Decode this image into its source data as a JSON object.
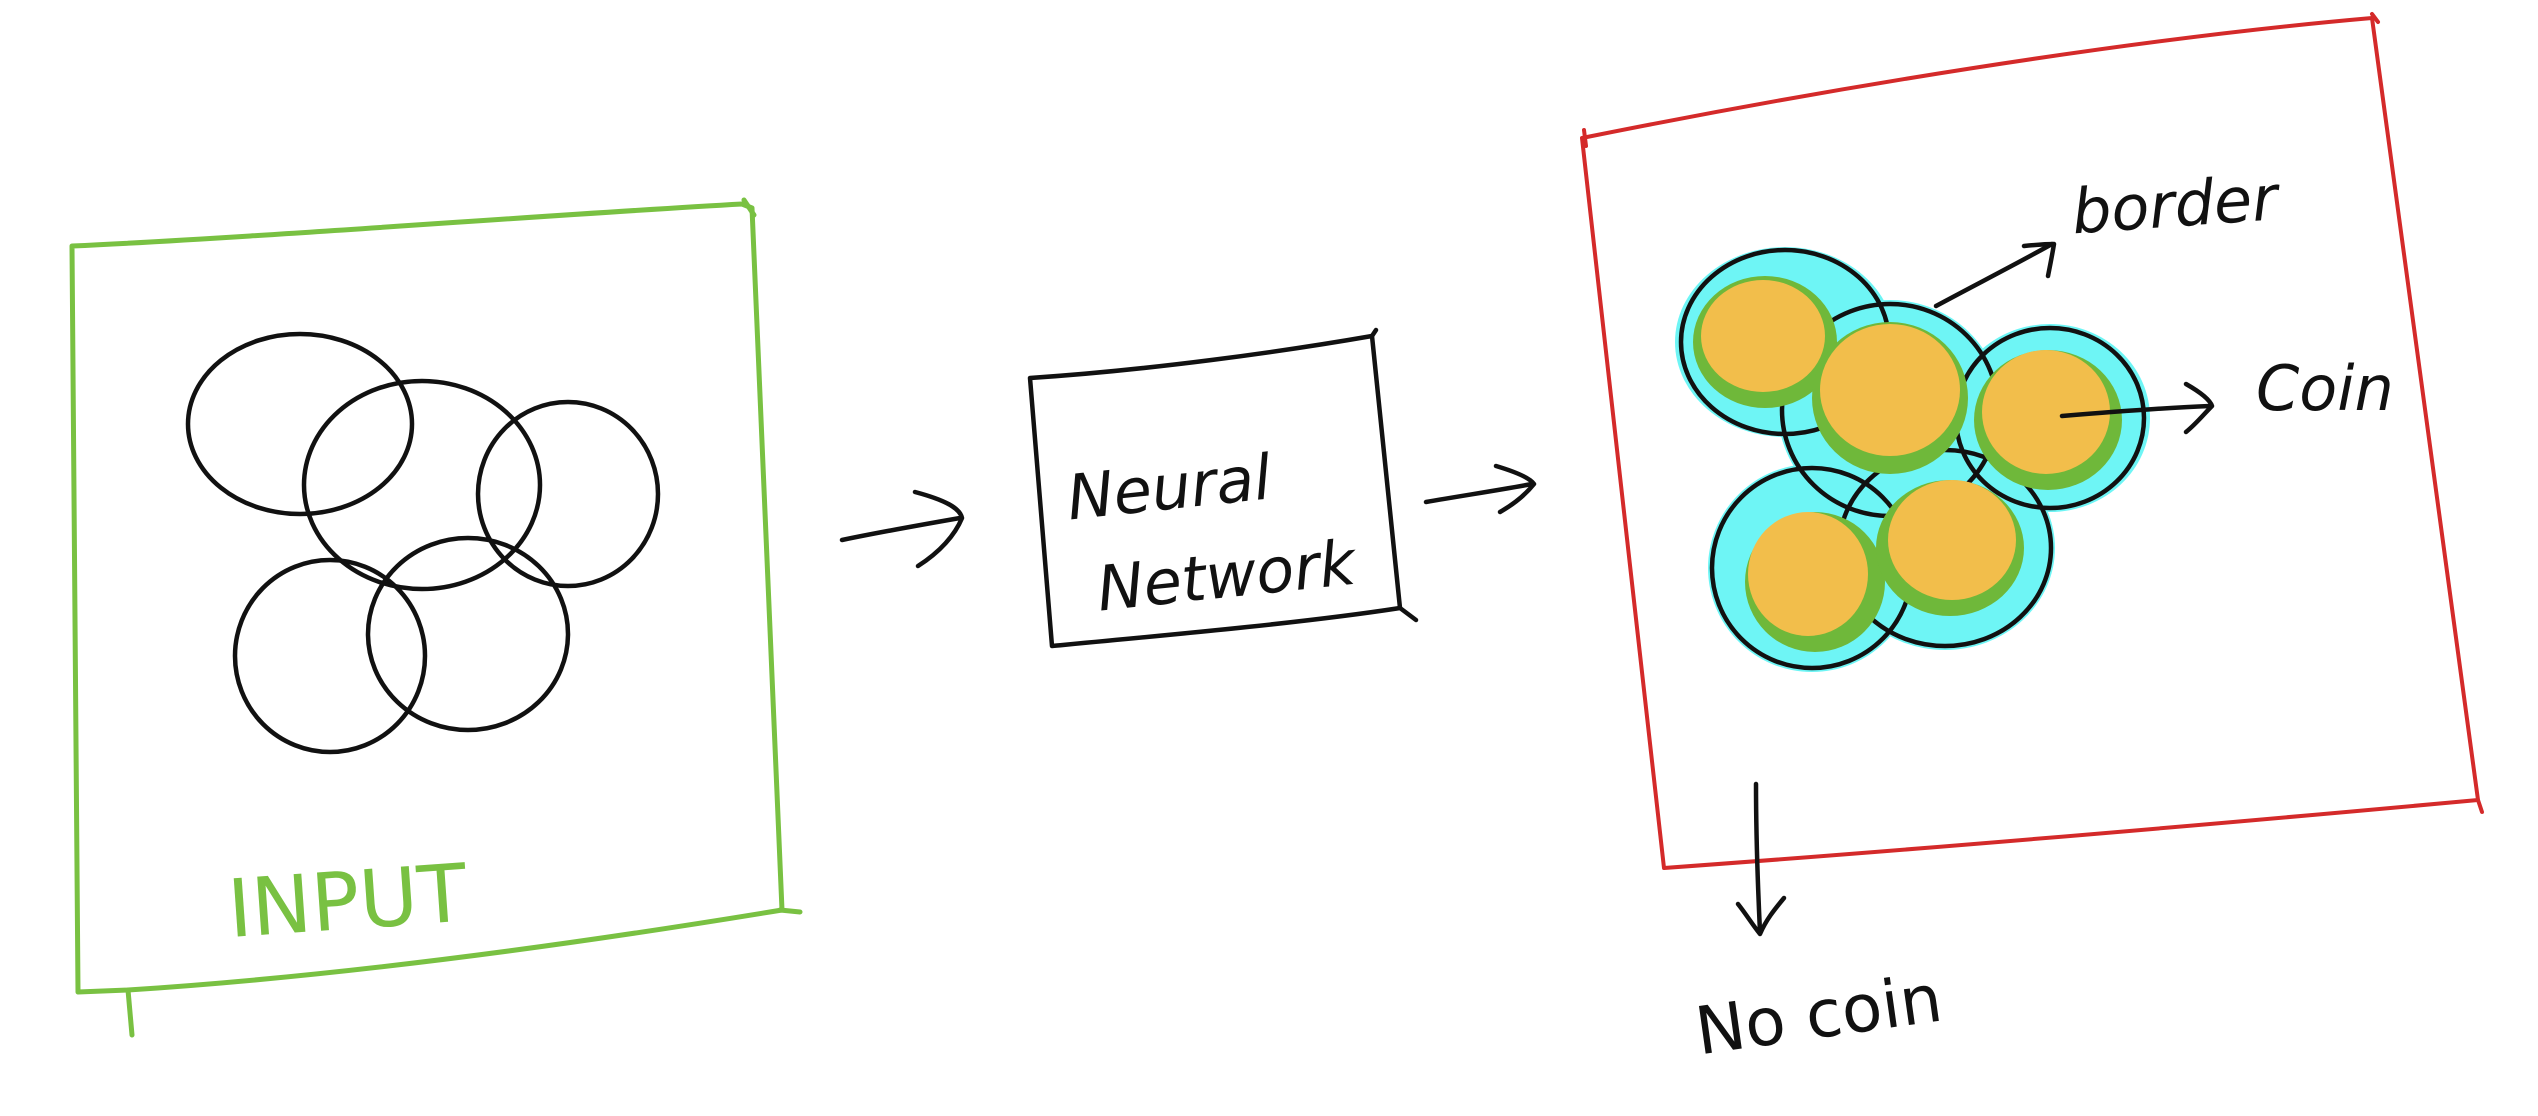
{
  "diagram": {
    "input_label": "INPUT",
    "network_label_line1": "Neural",
    "network_label_line2": "Network",
    "output_labels": {
      "border": "border",
      "coin": "Coin",
      "no_coin": "No coin"
    },
    "colors": {
      "input_frame": "#79c142",
      "output_frame": "#d42a2a",
      "coin_fill": "#f2be4b",
      "border_green": "#6fb83a",
      "halo_cyan": "#6ef5f5",
      "ink": "#111111"
    }
  }
}
